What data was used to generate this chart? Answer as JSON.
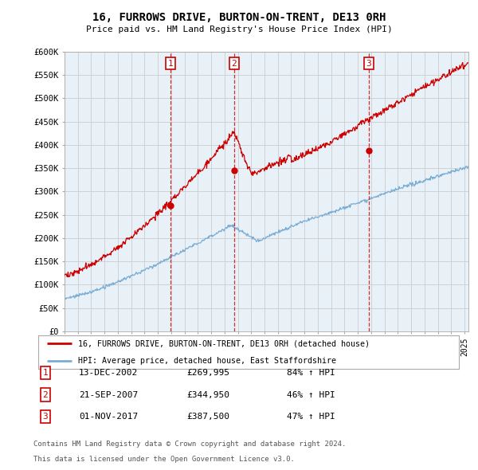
{
  "title": "16, FURROWS DRIVE, BURTON-ON-TRENT, DE13 0RH",
  "subtitle": "Price paid vs. HM Land Registry's House Price Index (HPI)",
  "ylabel_ticks": [
    "£0",
    "£50K",
    "£100K",
    "£150K",
    "£200K",
    "£250K",
    "£300K",
    "£350K",
    "£400K",
    "£450K",
    "£500K",
    "£550K",
    "£600K"
  ],
  "ylim": [
    0,
    600000
  ],
  "xlim_start": 1995.0,
  "xlim_end": 2025.3,
  "sale_dates": [
    2002.95,
    2007.72,
    2017.83
  ],
  "sale_prices": [
    269995,
    344950,
    387500
  ],
  "sale_labels": [
    "1",
    "2",
    "3"
  ],
  "legend_line1": "16, FURROWS DRIVE, BURTON-ON-TRENT, DE13 0RH (detached house)",
  "legend_line2": "HPI: Average price, detached house, East Staffordshire",
  "table_data": [
    [
      "1",
      "13-DEC-2002",
      "£269,995",
      "84% ↑ HPI"
    ],
    [
      "2",
      "21-SEP-2007",
      "£344,950",
      "46% ↑ HPI"
    ],
    [
      "3",
      "01-NOV-2017",
      "£387,500",
      "47% ↑ HPI"
    ]
  ],
  "footnote1": "Contains HM Land Registry data © Crown copyright and database right 2024.",
  "footnote2": "This data is licensed under the Open Government Licence v3.0.",
  "red_color": "#cc0000",
  "blue_color": "#7aadd4",
  "chart_bg": "#e8f0f8",
  "grid_color": "#cccccc",
  "background_color": "#ffffff"
}
